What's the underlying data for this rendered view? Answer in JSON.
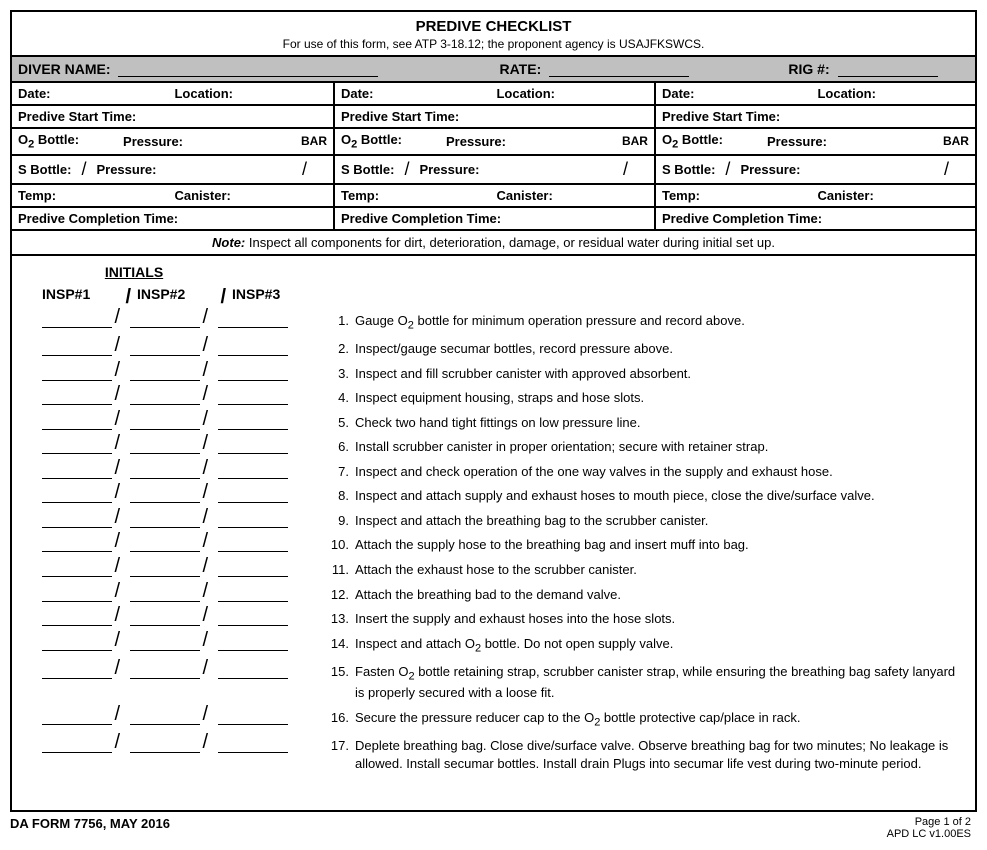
{
  "title": "PREDIVE CHECKLIST",
  "subtitle": "For use of this form, see ATP 3-18.12; the proponent agency is USAJFKSWCS.",
  "header": {
    "diver_name_label": "DIVER NAME:",
    "rate_label": "RATE:",
    "rig_label": "RIG #:"
  },
  "row_labels": {
    "date": "Date:",
    "location": "Location:",
    "predive_start": "Predive Start Time:",
    "o2_bottle": "O",
    "o2_bottle_suffix": " Bottle:",
    "pressure": "Pressure:",
    "bar": "BAR",
    "s_bottle": "S  Bottle:",
    "temp": "Temp:",
    "canister": "Canister:",
    "predive_completion": "Predive Completion Time:"
  },
  "note_label": "Note:",
  "note_text": "  Inspect all components for dirt, deterioration, damage, or residual water during initial set up.",
  "initials": "INITIALS",
  "insp1": "INSP#1",
  "insp2": "INSP#2",
  "insp3": "INSP#3",
  "items": [
    "Gauge O₂ bottle for minimum operation pressure and record above.",
    "Inspect/gauge secumar bottles, record pressure above.",
    "Inspect and fill scrubber canister with approved absorbent.",
    "Inspect equipment housing, straps and hose slots.",
    "Check two hand tight fittings on low pressure line.",
    "Install scrubber canister in proper orientation; secure with retainer strap.",
    "Inspect and check operation of the one way valves in the supply and exhaust hose.",
    "Inspect and attach supply and exhaust hoses to mouth piece, close the dive/surface valve.",
    "Inspect and attach the breathing bag to the scrubber canister.",
    "Attach the supply hose to the breathing bag and insert muff into bag.",
    "Attach the exhaust hose to the scrubber canister.",
    "Attach the breathing bad to the demand valve.",
    "Insert the supply and exhaust hoses into the hose slots.",
    "Inspect and attach O₂ bottle.  Do not open supply valve.",
    "Fasten O₂ bottle retaining strap, scrubber canister strap, while ensuring the breathing bag safety lanyard is properly secured with a loose fit.",
    "Secure the pressure reducer cap  to the O₂ bottle protective cap/place in rack.",
    "Deplete breathing bag.  Close dive/surface valve.  Observe breathing bag for two minutes; No leakage is allowed.  Install secumar bottles. Install drain Plugs into secumar life vest during two-minute period."
  ],
  "footer": {
    "form": "DA FORM 7756, MAY 2016",
    "page": "Page 1 of 2",
    "version": "APD LC v1.00ES"
  }
}
